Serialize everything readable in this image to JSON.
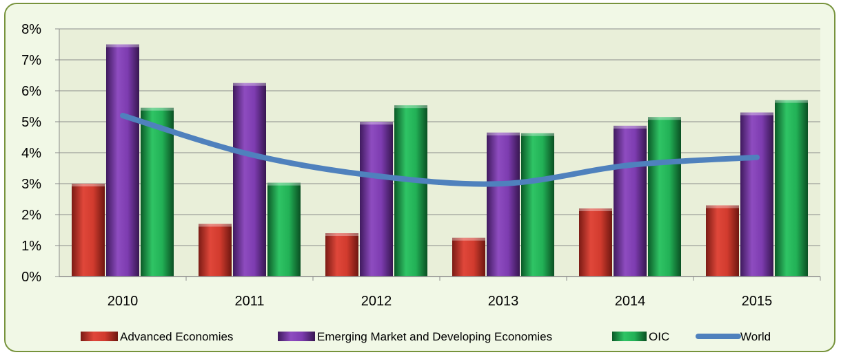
{
  "chart_data": {
    "type": "bar",
    "categories": [
      "2010",
      "2011",
      "2012",
      "2013",
      "2014",
      "2015"
    ],
    "y_ticks": [
      "0%",
      "1%",
      "2%",
      "3%",
      "4%",
      "5%",
      "6%",
      "7%",
      "8%"
    ],
    "ylim": [
      0,
      8
    ],
    "y_unit": "%",
    "grid": true,
    "legend_position": "bottom",
    "series": [
      {
        "name": "Advanced Economies",
        "kind": "bar",
        "color": "#c0392b",
        "values": [
          3.0,
          1.7,
          1.4,
          1.25,
          2.2,
          2.3
        ]
      },
      {
        "name": "Emerging Market and Developing Economies",
        "kind": "bar",
        "color": "#7d3c98",
        "values": [
          7.5,
          6.25,
          5.0,
          4.65,
          4.87,
          5.3
        ]
      },
      {
        "name": "OIC",
        "kind": "bar",
        "color": "#1e9e4a",
        "values": [
          5.45,
          3.03,
          5.53,
          4.63,
          5.15,
          5.7
        ]
      },
      {
        "name": "World",
        "kind": "line",
        "color": "#4f81bd",
        "values": [
          5.2,
          3.95,
          3.25,
          3.0,
          3.6,
          3.85
        ]
      }
    ]
  }
}
